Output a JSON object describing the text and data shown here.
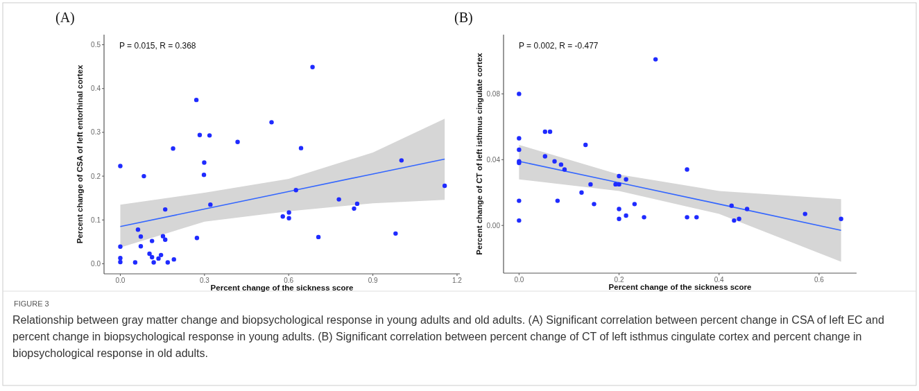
{
  "chart_data": [
    {
      "type": "scatter",
      "title": "(A)",
      "xlabel": "Percent change of the sickness score",
      "ylabel": "Percent change of CSA of left entorhinal cortex",
      "annotations": [
        "P = 0.015, R = 0.368"
      ],
      "xlim": [
        -0.058,
        1.21
      ],
      "ylim": [
        -0.023,
        0.523
      ],
      "xticks": [
        {
          "value": 0,
          "label": "0.0"
        },
        0.3,
        0.6,
        0.9,
        1.2
      ],
      "yticks": [
        {
          "value": 0,
          "label": "0.0"
        },
        0.1,
        0.2,
        0.3,
        0.4,
        0.5
      ],
      "grid": false,
      "marker": "circle",
      "series": [
        {
          "type": "line",
          "marker": "none",
          "color": "#3366ff",
          "x": [
            0,
            0.3,
            0.6,
            0.9,
            1.156
          ],
          "values": [
            0.085,
            0.125,
            0.165,
            0.205,
            0.239
          ],
          "lower": [
            0.037,
            0.096,
            0.12,
            0.138,
            0.146
          ],
          "upper": [
            0.135,
            0.162,
            0.194,
            0.254,
            0.331
          ]
        },
        {
          "type": "scatter",
          "color": "#1f2bff",
          "x": [
            0,
            0,
            0,
            0,
            0.053,
            0.063,
            0.073,
            0.073,
            0.084,
            0.104,
            0.113,
            0.113,
            0.119,
            0.136,
            0.145,
            0.152,
            0.16,
            0.16,
            0.169,
            0.188,
            0.191,
            0.271,
            0.273,
            0.283,
            0.299,
            0.298,
            0.318,
            0.321,
            0.418,
            0.539,
            0.685,
            0.644,
            1.002,
            0.626,
            1.156,
            0.779,
            0.844,
            0.833,
            0.579,
            0.601,
            0.601,
            0.706,
            0.981
          ],
          "values": [
            0.223,
            0.039,
            0.013,
            0.004,
            0.003,
            0.078,
            0.062,
            0.04,
            0.2,
            0.023,
            0.052,
            0.015,
            0.003,
            0.012,
            0.02,
            0.063,
            0.124,
            0.055,
            0.003,
            0.263,
            0.01,
            0.374,
            0.059,
            0.294,
            0.231,
            0.203,
            0.293,
            0.135,
            0.278,
            0.323,
            0.449,
            0.264,
            0.236,
            0.168,
            0.178,
            0.147,
            0.137,
            0.126,
            0.108,
            0.117,
            0.104,
            0.061,
            0.069
          ]
        }
      ]
    },
    {
      "type": "scatter",
      "title": "(B)",
      "xlabel": "Percent change of the sickness score",
      "ylabel": "Percent change of CT of left isthmus cingulate cortex",
      "annotations": [
        "P = 0.002, R = -0.477"
      ],
      "xlim": [
        -0.031,
        0.675
      ],
      "ylim": [
        -0.029,
        0.116
      ],
      "xticks": [
        {
          "value": 0,
          "label": "0.0"
        },
        0.2,
        0.4,
        0.6
      ],
      "yticks": [
        {
          "value": 0,
          "label": "0.00"
        },
        0.04,
        0.08
      ],
      "grid": false,
      "marker": "circle",
      "series": [
        {
          "type": "line",
          "marker": "none",
          "color": "#3366ff",
          "x": [
            0,
            0.2,
            0.4,
            0.644
          ],
          "values": [
            0.039,
            0.026,
            0.013,
            -0.003
          ],
          "lower": [
            0.028,
            0.021,
            0.007,
            -0.022
          ],
          "upper": [
            0.049,
            0.031,
            0.021,
            0.016
          ]
        },
        {
          "type": "scatter",
          "color": "#1f2bff",
          "x": [
            0,
            0,
            0,
            0,
            0,
            0,
            0,
            0.052,
            0.062,
            0.052,
            0.071,
            0.084,
            0.091,
            0.133,
            0.125,
            0.077,
            0.143,
            0.15,
            0.193,
            0.2,
            0.2,
            0.214,
            0.2,
            0.2,
            0.214,
            0.231,
            0.25,
            0.273,
            0.336,
            0.336,
            0.355,
            0.425,
            0.43,
            0.44,
            0.456,
            0.572,
            0.644
          ],
          "values": [
            0.08,
            0.053,
            0.046,
            0.039,
            0.038,
            0.015,
            0.003,
            0.057,
            0.057,
            0.042,
            0.039,
            0.037,
            0.034,
            0.049,
            0.02,
            0.015,
            0.025,
            0.013,
            0.025,
            0.03,
            0.025,
            0.028,
            0.01,
            0.004,
            0.006,
            0.013,
            0.005,
            0.101,
            0.034,
            0.005,
            0.005,
            0.012,
            0.003,
            0.004,
            0.01,
            0.007,
            0.004
          ]
        }
      ]
    },
    {
      "type": "other",
      "title": "FIGURE 3",
      "annotations": [
        "Relationship between gray matter change and biopsychological response in young adults and old adults. (A) Significant correlation between percent change in CSA of left EC and percent change in biopsychological response in young adults. (B) Significant correlation between percent change of CT of left isthmus cingulate cortex and percent change in biopsychological response in old adults."
      ]
    }
  ]
}
